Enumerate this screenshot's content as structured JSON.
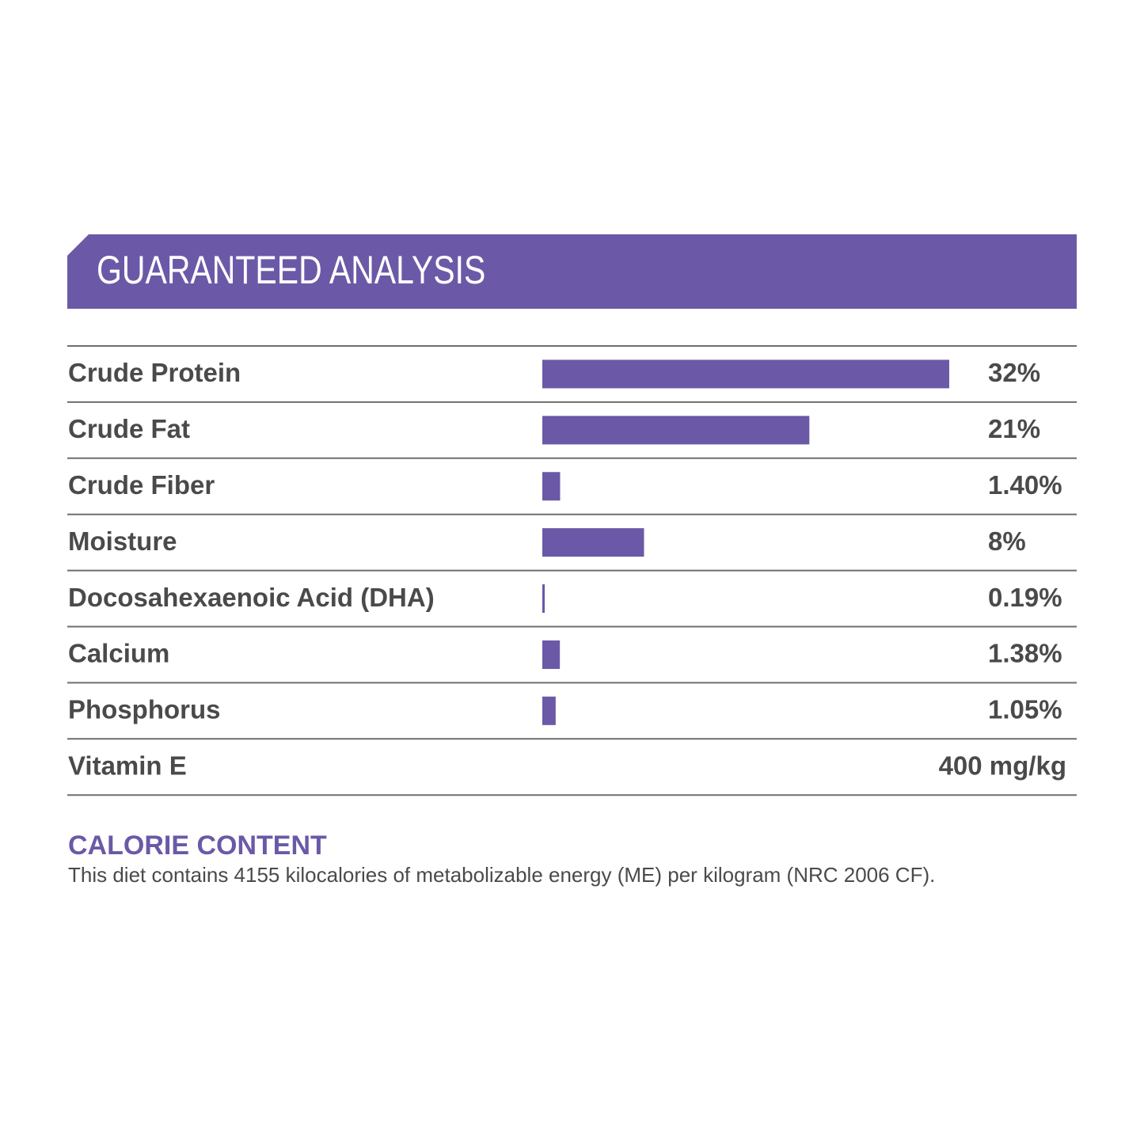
{
  "chart_data": {
    "type": "bar",
    "orientation": "horizontal",
    "title": "GUARANTEED ANALYSIS",
    "categories": [
      "Crude Protein",
      "Crude Fat",
      "Crude Fiber",
      "Moisture",
      "Docosahexaenoic Acid (DHA)",
      "Calcium",
      "Phosphorus"
    ],
    "values": [
      32,
      21,
      1.4,
      8,
      0.19,
      1.38,
      1.05
    ],
    "value_labels": [
      "32%",
      "21%",
      "1.40%",
      "8%",
      "0.19%",
      "1.38%",
      "1.05%"
    ],
    "color": "#6b59a7",
    "extra_rows": [
      {
        "name": "Vitamin E",
        "value": "400 mg/kg"
      }
    ],
    "note": {
      "heading": "CALORIE CONTENT",
      "text": "This diet contains 4155 kilocalories of metabolizable energy (ME) per kilogram (NRC 2006 CF)."
    }
  }
}
